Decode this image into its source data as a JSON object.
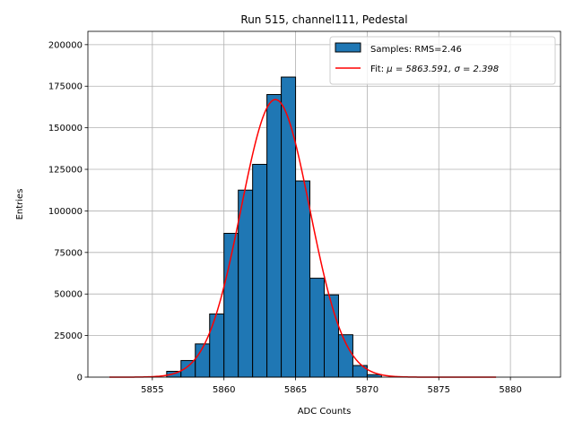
{
  "chart_data": {
    "type": "bar",
    "title": "Run 515, channel111, Pedestal",
    "xlabel": "ADC Counts",
    "ylabel": "Entries",
    "xlim": [
      5850.5,
      5883.5
    ],
    "ylim": [
      0,
      208000
    ],
    "xticks": [
      5855,
      5860,
      5865,
      5870,
      5875,
      5880
    ],
    "yticks": [
      0,
      25000,
      50000,
      75000,
      100000,
      125000,
      150000,
      175000,
      200000
    ],
    "grid": true,
    "legend_position": "top-right",
    "bins": {
      "edges": [
        5856,
        5857,
        5858,
        5859,
        5860,
        5861,
        5862,
        5863,
        5864,
        5865,
        5866,
        5867,
        5868,
        5869,
        5870,
        5871
      ],
      "counts": [
        3500,
        10000,
        20000,
        38000,
        86500,
        112500,
        128000,
        170000,
        180500,
        118000,
        59500,
        49500,
        25500,
        7000,
        1500
      ]
    },
    "fit": {
      "mu": 5863.591,
      "sigma": 2.398,
      "amplitude": 167000,
      "x_range": [
        5852,
        5879
      ]
    },
    "legend": [
      {
        "label_prefix": "Samples: RMS=2.46",
        "label_math": "",
        "kind": "patch",
        "color": "#1f77b4"
      },
      {
        "label_prefix": "Fit: ",
        "label_math": "μ = 5863.591, σ = 2.398",
        "kind": "line",
        "color": "#ff0000"
      }
    ],
    "colors": {
      "bar_fill": "#1f77b4",
      "bar_edge": "#000000",
      "fit_line": "#ff0000",
      "grid": "#b0b0b0"
    }
  }
}
